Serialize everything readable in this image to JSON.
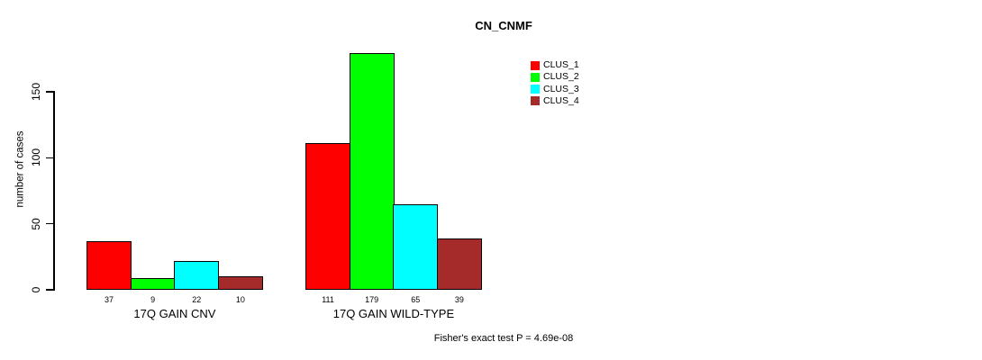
{
  "title": "CN_CNMF",
  "y_axis_label": "number of cases",
  "footnote": "Fisher's exact test P = 4.69e-08",
  "legend_entries": [
    "CLUS_1",
    "CLUS_2",
    "CLUS_3",
    "CLUS_4"
  ],
  "colors": {
    "clus_1": "#FF0000",
    "clus_2": "#00FF00",
    "clus_3": "#00FFFF",
    "clus_4": "#A52A2A"
  },
  "chart_data": {
    "type": "bar",
    "title": "CN_CNMF",
    "ylabel": "number of cases",
    "xlabel": "",
    "categories": [
      "17Q GAIN CNV",
      "17Q GAIN WILD-TYPE"
    ],
    "series": [
      {
        "name": "CLUS_1",
        "color": "#FF0000",
        "values": [
          37,
          111
        ]
      },
      {
        "name": "CLUS_2",
        "color": "#00FF00",
        "values": [
          9,
          179
        ]
      },
      {
        "name": "CLUS_3",
        "color": "#00FFFF",
        "values": [
          22,
          65
        ]
      },
      {
        "name": "CLUS_4",
        "color": "#A52A2A",
        "values": [
          10,
          39
        ]
      }
    ],
    "bar_value_labels": [
      [
        37,
        9,
        22,
        10
      ],
      [
        111,
        179,
        65,
        39
      ]
    ],
    "yticks": [
      0,
      50,
      100,
      150
    ],
    "ylim": [
      0,
      150
    ],
    "grid": false,
    "legend_position": "top-right",
    "annotation": "Fisher's exact test P = 4.69e-08"
  }
}
